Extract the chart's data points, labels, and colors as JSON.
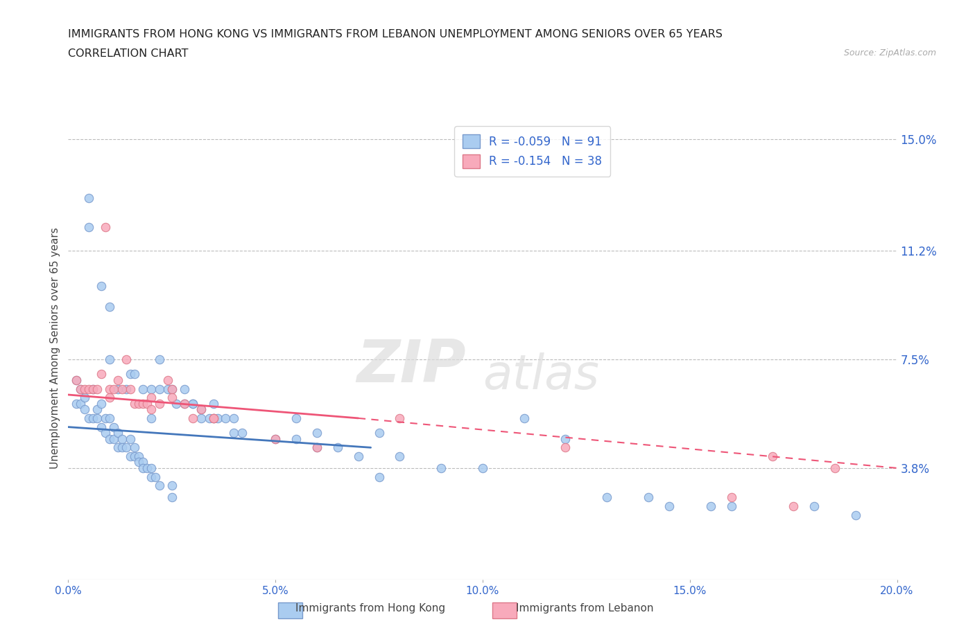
{
  "title_line1": "IMMIGRANTS FROM HONG KONG VS IMMIGRANTS FROM LEBANON UNEMPLOYMENT AMONG SENIORS OVER 65 YEARS",
  "title_line2": "CORRELATION CHART",
  "source": "Source: ZipAtlas.com",
  "ylabel": "Unemployment Among Seniors over 65 years",
  "x_min": 0.0,
  "x_max": 0.2,
  "y_min": 0.0,
  "y_max": 0.158,
  "y_ticks": [
    0.038,
    0.075,
    0.112,
    0.15
  ],
  "y_tick_labels": [
    "3.8%",
    "7.5%",
    "11.2%",
    "15.0%"
  ],
  "x_ticks": [
    0.0,
    0.05,
    0.1,
    0.15,
    0.2
  ],
  "x_tick_labels": [
    "0.0%",
    "5.0%",
    "10.0%",
    "15.0%",
    "20.0%"
  ],
  "hk_color": "#aaccf0",
  "hk_edge_color": "#7799cc",
  "lb_color": "#f8aabb",
  "lb_edge_color": "#dd7788",
  "hk_R": -0.059,
  "hk_N": 91,
  "lb_R": -0.154,
  "lb_N": 38,
  "hk_line_color": "#4477bb",
  "lb_line_color": "#ee5577",
  "legend_label_hk": "Immigrants from Hong Kong",
  "legend_label_lb": "Immigrants from Lebanon",
  "watermark_zip": "ZIP",
  "watermark_atlas": "atlas",
  "background_color": "#ffffff",
  "grid_color": "#bbbbbb",
  "title_color": "#222222",
  "axis_label_color": "#444444",
  "tick_label_color": "#3366cc",
  "hk_scatter_x": [
    0.005,
    0.005,
    0.008,
    0.01,
    0.01,
    0.012,
    0.014,
    0.015,
    0.016,
    0.018,
    0.02,
    0.022,
    0.022,
    0.024,
    0.025,
    0.026,
    0.028,
    0.028,
    0.03,
    0.03,
    0.032,
    0.032,
    0.034,
    0.035,
    0.035,
    0.036,
    0.038,
    0.04,
    0.04,
    0.042,
    0.002,
    0.002,
    0.003,
    0.003,
    0.004,
    0.004,
    0.005,
    0.006,
    0.006,
    0.007,
    0.007,
    0.008,
    0.008,
    0.009,
    0.009,
    0.01,
    0.01,
    0.011,
    0.011,
    0.012,
    0.012,
    0.013,
    0.013,
    0.014,
    0.015,
    0.015,
    0.016,
    0.016,
    0.017,
    0.017,
    0.018,
    0.018,
    0.019,
    0.02,
    0.02,
    0.021,
    0.022,
    0.025,
    0.025,
    0.02,
    0.06,
    0.05,
    0.055,
    0.065,
    0.075,
    0.075,
    0.08,
    0.09,
    0.1,
    0.12,
    0.14,
    0.16,
    0.055,
    0.06,
    0.07,
    0.11,
    0.13,
    0.145,
    0.155,
    0.18,
    0.19
  ],
  "hk_scatter_y": [
    0.13,
    0.12,
    0.1,
    0.093,
    0.075,
    0.065,
    0.065,
    0.07,
    0.07,
    0.065,
    0.065,
    0.065,
    0.075,
    0.065,
    0.065,
    0.06,
    0.06,
    0.065,
    0.06,
    0.06,
    0.058,
    0.055,
    0.055,
    0.06,
    0.055,
    0.055,
    0.055,
    0.055,
    0.05,
    0.05,
    0.068,
    0.06,
    0.065,
    0.06,
    0.062,
    0.058,
    0.055,
    0.065,
    0.055,
    0.058,
    0.055,
    0.052,
    0.06,
    0.055,
    0.05,
    0.055,
    0.048,
    0.052,
    0.048,
    0.05,
    0.045,
    0.048,
    0.045,
    0.045,
    0.048,
    0.042,
    0.045,
    0.042,
    0.042,
    0.04,
    0.04,
    0.038,
    0.038,
    0.038,
    0.035,
    0.035,
    0.032,
    0.032,
    0.028,
    0.055,
    0.05,
    0.048,
    0.055,
    0.045,
    0.05,
    0.035,
    0.042,
    0.038,
    0.038,
    0.048,
    0.028,
    0.025,
    0.048,
    0.045,
    0.042,
    0.055,
    0.028,
    0.025,
    0.025,
    0.025,
    0.022
  ],
  "lb_scatter_x": [
    0.002,
    0.003,
    0.004,
    0.005,
    0.006,
    0.007,
    0.008,
    0.009,
    0.01,
    0.01,
    0.011,
    0.012,
    0.013,
    0.014,
    0.015,
    0.016,
    0.017,
    0.018,
    0.019,
    0.02,
    0.02,
    0.022,
    0.024,
    0.025,
    0.025,
    0.028,
    0.03,
    0.032,
    0.035,
    0.035,
    0.05,
    0.06,
    0.08,
    0.12,
    0.16,
    0.17,
    0.175,
    0.185
  ],
  "lb_scatter_y": [
    0.068,
    0.065,
    0.065,
    0.065,
    0.065,
    0.065,
    0.07,
    0.12,
    0.065,
    0.062,
    0.065,
    0.068,
    0.065,
    0.075,
    0.065,
    0.06,
    0.06,
    0.06,
    0.06,
    0.058,
    0.062,
    0.06,
    0.068,
    0.065,
    0.062,
    0.06,
    0.055,
    0.058,
    0.055,
    0.055,
    0.048,
    0.045,
    0.055,
    0.045,
    0.028,
    0.042,
    0.025,
    0.038
  ],
  "hk_trendline_x": [
    0.0,
    0.073
  ],
  "hk_trendline_y": [
    0.052,
    0.045
  ],
  "lb_trendline_x": [
    0.0,
    0.2
  ],
  "lb_trendline_y": [
    0.063,
    0.038
  ]
}
